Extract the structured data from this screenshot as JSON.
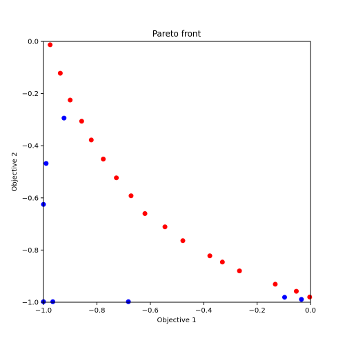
{
  "chart_data": {
    "type": "scatter",
    "title": "Pareto front",
    "xlabel": "Objective 1",
    "ylabel": "Objective 2",
    "xlim": [
      -1.0,
      0.0
    ],
    "ylim": [
      -1.0,
      0.0
    ],
    "xticks": [
      -1.0,
      -0.8,
      -0.6,
      -0.4,
      -0.2,
      0.0
    ],
    "yticks": [
      -1.0,
      -0.8,
      -0.6,
      -0.4,
      -0.2,
      0.0
    ],
    "xtick_labels": [
      "−1.0",
      "−0.8",
      "−0.6",
      "−0.4",
      "−0.2",
      "0.0"
    ],
    "ytick_labels": [
      "−1.0",
      "−0.8",
      "−0.6",
      "−0.4",
      "−0.2",
      "0.0"
    ],
    "grid": false,
    "series": [
      {
        "color": "#ff0000",
        "points": [
          {
            "x": -0.975,
            "y": -0.013
          },
          {
            "x": -0.937,
            "y": -0.122
          },
          {
            "x": -0.9,
            "y": -0.225
          },
          {
            "x": -0.857,
            "y": -0.306
          },
          {
            "x": -0.821,
            "y": -0.378
          },
          {
            "x": -0.776,
            "y": -0.451
          },
          {
            "x": -0.727,
            "y": -0.523
          },
          {
            "x": -0.672,
            "y": -0.592
          },
          {
            "x": -0.62,
            "y": -0.66
          },
          {
            "x": -0.545,
            "y": -0.711
          },
          {
            "x": -0.478,
            "y": -0.764
          },
          {
            "x": -0.377,
            "y": -0.822
          },
          {
            "x": -0.33,
            "y": -0.846
          },
          {
            "x": -0.266,
            "y": -0.88
          },
          {
            "x": -0.132,
            "y": -0.931
          },
          {
            "x": -0.053,
            "y": -0.958
          },
          {
            "x": -0.003,
            "y": -0.98
          }
        ]
      },
      {
        "color": "#0000ff",
        "points": [
          {
            "x": -0.923,
            "y": -0.294
          },
          {
            "x": -0.99,
            "y": -0.468
          },
          {
            "x": -1.0,
            "y": -0.625
          },
          {
            "x": -1.0,
            "y": -0.998
          },
          {
            "x": -0.965,
            "y": -0.998
          },
          {
            "x": -0.682,
            "y": -0.998
          },
          {
            "x": -0.097,
            "y": -0.981
          },
          {
            "x": -0.034,
            "y": -0.989
          }
        ]
      }
    ]
  }
}
